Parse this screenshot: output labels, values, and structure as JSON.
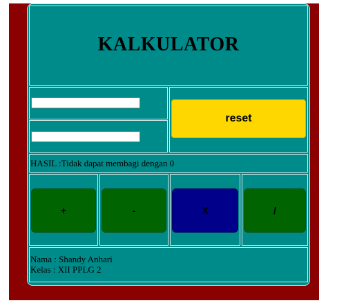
{
  "app": {
    "title": "KALKULATOR"
  },
  "inputs": {
    "first_value": "",
    "second_value": ""
  },
  "buttons": {
    "reset_label": "reset",
    "add_label": "+",
    "subtract_label": "-",
    "multiply_label": "X",
    "divide_label": "/"
  },
  "result": {
    "text": "HASIL :Tidak dapat membagi dengan 0"
  },
  "footer": {
    "name_line": "Nama : Shandy Anhari",
    "class_line": "Kelas : XII PPLG 2"
  },
  "colors": {
    "page_background": "#8b0000",
    "calculator_background": "#008b8b",
    "reset_button": "#ffd700",
    "operator_button": "#006400",
    "active_operator_button": "#00008b"
  }
}
